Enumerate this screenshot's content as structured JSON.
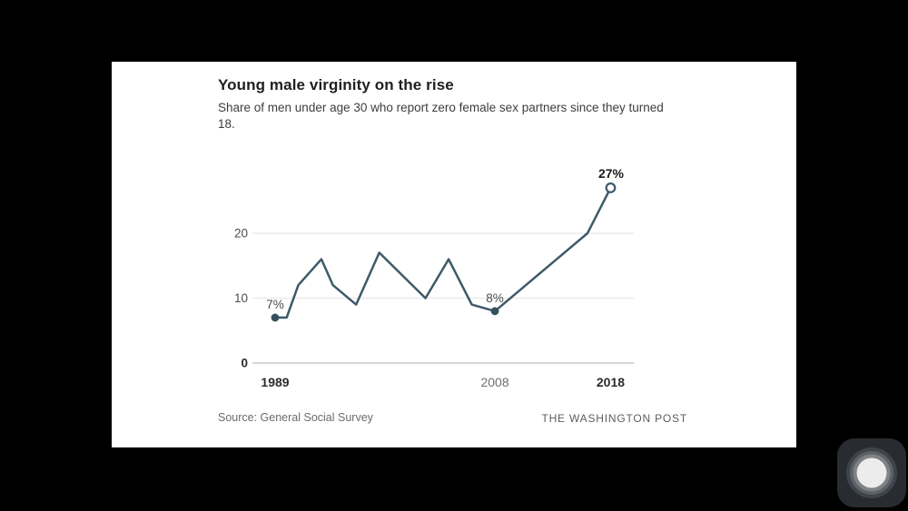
{
  "screen": {
    "background_color": "#000000"
  },
  "card": {
    "title": "Young male virginity on the rise",
    "subtitle": "Share of men under age 30 who report zero female sex partners since they turned 18.",
    "source": "Source: General Social Survey",
    "attribution": "THE WASHINGTON POST"
  },
  "chart_data": {
    "type": "line",
    "title": "Young male virginity on the rise",
    "subtitle": "Share of men under age 30 who report zero female sex partners since they turned 18.",
    "x": [
      1989,
      1990,
      1991,
      1993,
      1994,
      1996,
      1998,
      2002,
      2004,
      2006,
      2008,
      2016,
      2018
    ],
    "values": [
      7,
      7,
      12,
      16,
      12,
      9,
      17,
      10,
      16,
      9,
      8,
      20,
      27
    ],
    "unit": "%",
    "xlim": [
      1989,
      2018
    ],
    "ylim": [
      0,
      28
    ],
    "grid": "faint-horizontal-at-ticks",
    "legend": "none",
    "y_ticks": [
      {
        "value": 0,
        "label": "0",
        "bold": true
      },
      {
        "value": 10,
        "label": "10",
        "bold": false
      },
      {
        "value": 20,
        "label": "20",
        "bold": false
      }
    ],
    "x_ticks": [
      {
        "value": 1989,
        "label": "1989",
        "bold": true
      },
      {
        "value": 2008,
        "label": "2008",
        "bold": false
      },
      {
        "value": 2018,
        "label": "2018",
        "bold": true
      }
    ],
    "annotations": [
      {
        "x": 1989,
        "value": 7,
        "label": "7%",
        "marker": "filled",
        "bold": false
      },
      {
        "x": 2008,
        "value": 8,
        "label": "8%",
        "marker": "filled",
        "bold": false
      },
      {
        "x": 2018,
        "value": 27,
        "label": "27%",
        "marker": "open",
        "bold": true
      }
    ],
    "colors": {
      "line": "#3e5a68",
      "marker_fill": "#35505d",
      "grid": "#ececec",
      "baseline": "#c9c9c9",
      "tick_dark": "#2b2b2b",
      "tick_muted": "#6e6e6e",
      "annotation_text": "#4d4d4d",
      "annotation_text_bold": "#1a1a1a"
    }
  },
  "icons": {
    "assistive_touch": "assistive-touch-floating-button"
  }
}
